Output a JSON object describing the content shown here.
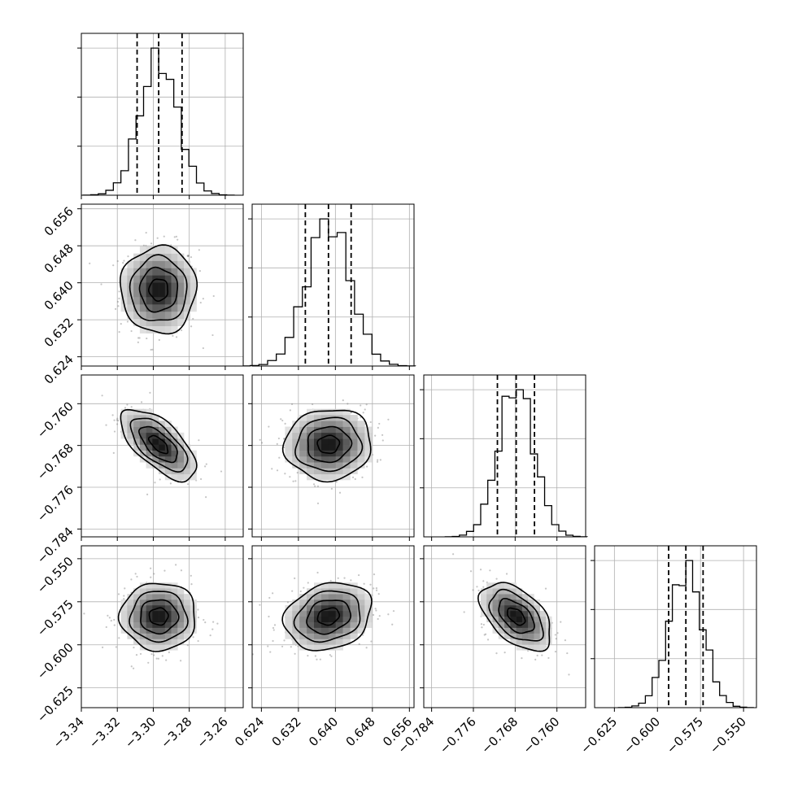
{
  "chart_data": {
    "type": "corner",
    "parameters": [
      {
        "key": "p0",
        "range": [
          -3.34,
          -3.25
        ],
        "ticks": [
          -3.34,
          -3.32,
          -3.3,
          -3.28,
          -3.26
        ],
        "tick_labels": [
          "−3.34",
          "−3.32",
          "−3.30",
          "−3.28",
          "−3.26"
        ],
        "median": -3.297,
        "q16": -3.309,
        "q84": -3.284,
        "std": 0.0105
      },
      {
        "key": "p1",
        "range": [
          0.622,
          0.657
        ],
        "ticks": [
          0.624,
          0.632,
          0.64,
          0.648,
          0.656
        ],
        "tick_labels": [
          "0.624",
          "0.632",
          "0.640",
          "0.648",
          "0.656"
        ],
        "median": 0.6385,
        "q16": 0.6335,
        "q84": 0.6434,
        "std": 0.0047
      },
      {
        "key": "p2",
        "range": [
          -0.7855,
          -0.7545
        ],
        "ticks": [
          -0.784,
          -0.776,
          -0.768,
          -0.76
        ],
        "tick_labels": [
          "−0.784",
          "−0.776",
          "−0.768",
          "−0.760"
        ],
        "median": -0.7678,
        "q16": -0.7714,
        "q84": -0.7643,
        "std": 0.0034
      },
      {
        "key": "p3",
        "range": [
          -0.6365,
          -0.5425
        ],
        "ticks": [
          -0.625,
          -0.6,
          -0.575,
          -0.55
        ],
        "tick_labels": [
          "−0.625",
          "−0.600",
          "−0.575",
          "−0.550"
        ],
        "median": -0.5835,
        "q16": -0.5935,
        "q84": -0.5735,
        "std": 0.0098
      }
    ],
    "correlations": {
      "1-0": 0.0,
      "2-0": -0.65,
      "2-1": 0.05,
      "3-0": 0.0,
      "3-1": 0.2,
      "3-2": -0.5
    },
    "histogram_bins": 20,
    "contour_levels": [
      0.5,
      1.0,
      1.5,
      2.0
    ],
    "scatter_points": 340,
    "grid": true,
    "xlabel": "",
    "ylabel": "",
    "title": ""
  }
}
